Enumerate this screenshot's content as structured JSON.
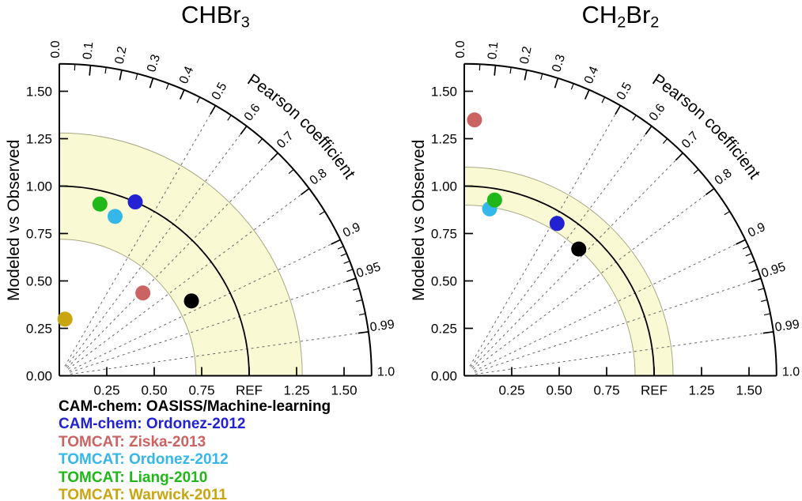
{
  "figure": {
    "legend_entries": [
      {
        "label": "CAM-chem: OASISS/Machine-learning",
        "color": "#000000"
      },
      {
        "label": "CAM-chem: Ordonez-2012",
        "color": "#2222d2"
      },
      {
        "label": "TOMCAT: Ziska-2013",
        "color": "#cb6363"
      },
      {
        "label": "TOMCAT: Ordonez-2012",
        "color": "#36b7ea"
      },
      {
        "label": "TOMCAT: Liang-2010",
        "color": "#1fb818"
      },
      {
        "label": "TOMCAT: Warwick-2011",
        "color": "#c9a50f"
      }
    ]
  },
  "chart_data": [
    {
      "type": "taylor",
      "title": "CHBr3",
      "title_parts": [
        {
          "text": "CHBr",
          "sub": false
        },
        {
          "text": "3",
          "sub": true
        }
      ],
      "ylabel": "Modeled vs Observed",
      "corr_label": "Pearson coefficient",
      "radial_axis_max": 1.645,
      "y_tick_labels": [
        "0.00",
        "0.25",
        "0.50",
        "0.75",
        "1.00",
        "1.25",
        "1.50"
      ],
      "x_tick_labels": [
        "0.25",
        "0.50",
        "0.75",
        "REF",
        "1.25",
        "1.50"
      ],
      "tick_step": 0.25,
      "ref_std": 1.0,
      "shaded_band": {
        "inner": 0.72,
        "outer": 1.28,
        "color": "#f9f9d4",
        "edge_color": "#a8a884"
      },
      "corr_major_ticks": [
        {
          "value": 0.0,
          "label": "0.0"
        },
        {
          "value": 0.1,
          "label": "0.1"
        },
        {
          "value": 0.2,
          "label": "0.2"
        },
        {
          "value": 0.3,
          "label": "0.3"
        },
        {
          "value": 0.4,
          "label": "0.4"
        },
        {
          "value": 0.5,
          "label": "0.5"
        },
        {
          "value": 0.6,
          "label": "0.6"
        },
        {
          "value": 0.7,
          "label": "0.7"
        },
        {
          "value": 0.8,
          "label": "0.8"
        },
        {
          "value": 0.9,
          "label": "0.9"
        },
        {
          "value": 0.95,
          "label": "0.95"
        },
        {
          "value": 0.99,
          "label": "0.99"
        },
        {
          "value": 1.0,
          "label": "1.0"
        }
      ],
      "corr_minor_ticks": [
        0.05,
        0.15,
        0.25,
        0.35,
        0.45,
        0.55,
        0.65,
        0.75,
        0.85,
        0.91,
        0.92,
        0.93,
        0.94,
        0.96,
        0.97,
        0.98
      ],
      "corr_dashed_lines": [
        0.5,
        0.6,
        0.7,
        0.8,
        0.9,
        0.95,
        0.99
      ],
      "points": [
        {
          "model": "CAM-chem: OASISS/Machine-learning",
          "std_ratio": 0.8,
          "corr": 0.87,
          "color": "#000000"
        },
        {
          "model": "CAM-chem: Ordonez-2012",
          "std_ratio": 1.0,
          "corr": 0.4,
          "color": "#2222d2"
        },
        {
          "model": "TOMCAT: Ziska-2013",
          "std_ratio": 0.62,
          "corr": 0.71,
          "color": "#cb6363"
        },
        {
          "model": "TOMCAT: Ordonez-2012",
          "std_ratio": 0.89,
          "corr": 0.33,
          "color": "#36b7ea"
        },
        {
          "model": "TOMCAT: Liang-2010",
          "std_ratio": 0.93,
          "corr": 0.23,
          "color": "#1fb818"
        },
        {
          "model": "TOMCAT: Warwick-2011",
          "std_ratio": 0.3,
          "corr": 0.1,
          "color": "#c9a50f"
        }
      ]
    },
    {
      "type": "taylor",
      "title": "CH2Br2",
      "title_parts": [
        {
          "text": "CH",
          "sub": false
        },
        {
          "text": "2",
          "sub": true
        },
        {
          "text": "Br",
          "sub": false
        },
        {
          "text": "2",
          "sub": true
        }
      ],
      "ylabel": "Modeled vs Observed",
      "corr_label": "Pearson coefficient",
      "radial_axis_max": 1.645,
      "y_tick_labels": [
        "0.00",
        "0.25",
        "0.50",
        "0.75",
        "1.00",
        "1.25",
        "1.50"
      ],
      "x_tick_labels": [
        "0.25",
        "0.50",
        "0.75",
        "REF",
        "1.25",
        "1.50"
      ],
      "tick_step": 0.25,
      "ref_std": 1.0,
      "shaded_band": {
        "inner": 0.9,
        "outer": 1.1,
        "color": "#f9f9d4",
        "edge_color": "#a8a884"
      },
      "corr_major_ticks": [
        {
          "value": 0.0,
          "label": "0.0"
        },
        {
          "value": 0.1,
          "label": "0.1"
        },
        {
          "value": 0.2,
          "label": "0.2"
        },
        {
          "value": 0.3,
          "label": "0.3"
        },
        {
          "value": 0.4,
          "label": "0.4"
        },
        {
          "value": 0.5,
          "label": "0.5"
        },
        {
          "value": 0.6,
          "label": "0.6"
        },
        {
          "value": 0.7,
          "label": "0.7"
        },
        {
          "value": 0.8,
          "label": "0.8"
        },
        {
          "value": 0.9,
          "label": "0.9"
        },
        {
          "value": 0.95,
          "label": "0.95"
        },
        {
          "value": 0.99,
          "label": "0.99"
        },
        {
          "value": 1.0,
          "label": "1.0"
        }
      ],
      "corr_minor_ticks": [
        0.05,
        0.15,
        0.25,
        0.35,
        0.45,
        0.55,
        0.65,
        0.75,
        0.85,
        0.91,
        0.92,
        0.93,
        0.94,
        0.96,
        0.97,
        0.98
      ],
      "corr_dashed_lines": [
        0.5,
        0.6,
        0.7,
        0.8,
        0.9,
        0.95,
        0.99
      ],
      "points": [
        {
          "model": "CAM-chem: OASISS/Machine-learning",
          "std_ratio": 0.9,
          "corr": 0.67,
          "color": "#000000"
        },
        {
          "model": "CAM-chem: Ordonez-2012",
          "std_ratio": 0.94,
          "corr": 0.52,
          "color": "#2222d2"
        },
        {
          "model": "TOMCAT: Ziska-2013",
          "std_ratio": 1.35,
          "corr": 0.04,
          "color": "#cb6363"
        },
        {
          "model": "TOMCAT: Ordonez-2012",
          "std_ratio": 0.89,
          "corr": 0.15,
          "color": "#36b7ea"
        },
        {
          "model": "TOMCAT: Liang-2010",
          "std_ratio": 0.94,
          "corr": 0.17,
          "color": "#1fb818"
        }
      ]
    }
  ]
}
